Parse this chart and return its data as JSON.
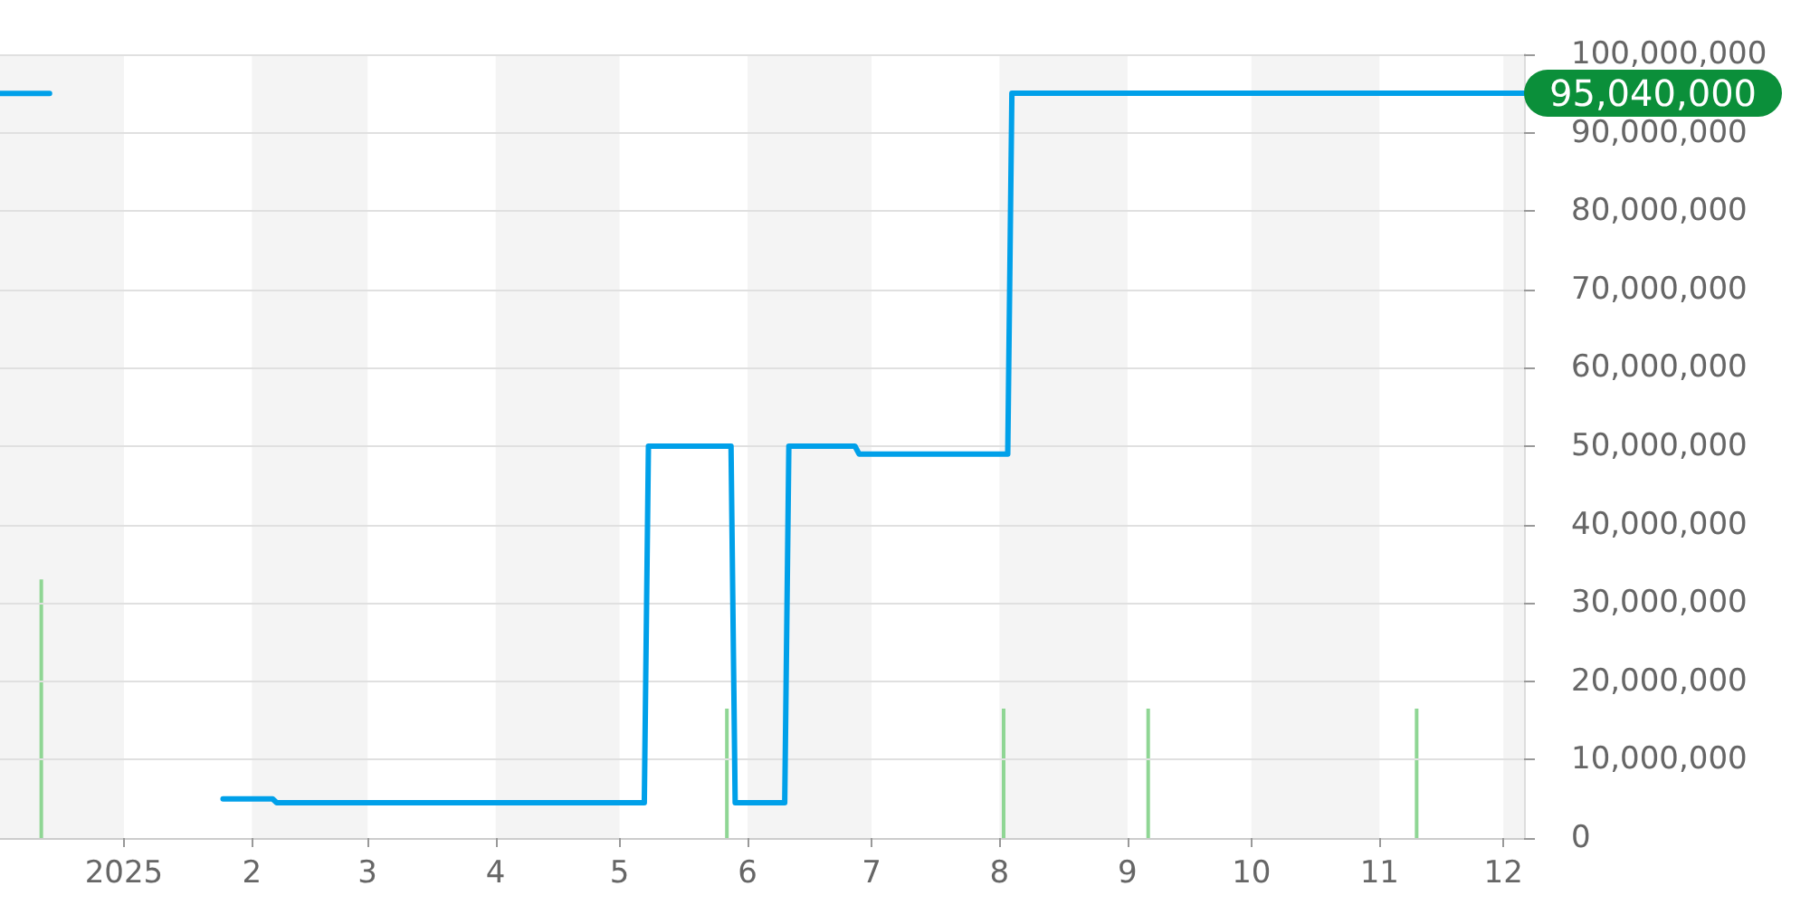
{
  "chart_data": {
    "type": "line",
    "xlim": [
      "2024-12-02",
      "2025-12-06"
    ],
    "xticks": [
      {
        "value": "2025-01-01",
        "label": "2025"
      },
      {
        "value": "2025-02-01",
        "label": "2"
      },
      {
        "value": "2025-03-01",
        "label": "3"
      },
      {
        "value": "2025-04-01",
        "label": "4"
      },
      {
        "value": "2025-05-01",
        "label": "5"
      },
      {
        "value": "2025-06-01",
        "label": "6"
      },
      {
        "value": "2025-07-01",
        "label": "7"
      },
      {
        "value": "2025-08-01",
        "label": "8"
      },
      {
        "value": "2025-09-01",
        "label": "9"
      },
      {
        "value": "2025-10-01",
        "label": "10"
      },
      {
        "value": "2025-11-01",
        "label": "11"
      },
      {
        "value": "2025-12-01",
        "label": "12"
      }
    ],
    "ylim": [
      0,
      100000000
    ],
    "yticks": [
      {
        "value": 0,
        "label": "0"
      },
      {
        "value": 10000000,
        "label": "10,000,000"
      },
      {
        "value": 20000000,
        "label": "20,000,000"
      },
      {
        "value": 30000000,
        "label": "30,000,000"
      },
      {
        "value": 40000000,
        "label": "40,000,000"
      },
      {
        "value": 50000000,
        "label": "50,000,000"
      },
      {
        "value": 60000000,
        "label": "60,000,000"
      },
      {
        "value": 70000000,
        "label": "70,000,000"
      },
      {
        "value": 80000000,
        "label": "80,000,000"
      },
      {
        "value": 90000000,
        "label": "90,000,000"
      },
      {
        "value": 100000000,
        "label": "100,000,000"
      }
    ],
    "grid": "y",
    "bands": [
      {
        "axis": "x",
        "from": "2024-12-02",
        "to": "2025-01-01",
        "color": "#f4f4f4"
      },
      {
        "axis": "x",
        "from": "2025-02-01",
        "to": "2025-03-01",
        "color": "#f4f4f4"
      },
      {
        "axis": "x",
        "from": "2025-04-01",
        "to": "2025-05-01",
        "color": "#f4f4f4"
      },
      {
        "axis": "x",
        "from": "2025-06-01",
        "to": "2025-07-01",
        "color": "#f4f4f4"
      },
      {
        "axis": "x",
        "from": "2025-08-01",
        "to": "2025-09-01",
        "color": "#f4f4f4"
      },
      {
        "axis": "x",
        "from": "2025-10-01",
        "to": "2025-11-01",
        "color": "#f4f4f4"
      },
      {
        "axis": "x",
        "from": "2025-12-01",
        "to": "2025-12-06",
        "color": "#f4f4f4"
      }
    ],
    "series": [
      {
        "type": "bar",
        "color": "#8fd694",
        "x": [
          "2024-12-12",
          "2025-05-27",
          "2025-08-02",
          "2025-09-06",
          "2025-11-10"
        ],
        "values": [
          33000000,
          16500000,
          16500000,
          16500000,
          16500000
        ]
      },
      {
        "color": "#00a0e9",
        "x": [
          "2024-12-02",
          "2024-12-14",
          "2024-12-20",
          "2025-01-25",
          "2025-02-06",
          "2025-02-07",
          "2025-05-07",
          "2025-05-08",
          "2025-05-28",
          "2025-05-29",
          "2025-06-10",
          "2025-06-11",
          "2025-06-27",
          "2025-06-28",
          "2025-08-03",
          "2025-08-04",
          "2025-12-06"
        ],
        "values": [
          95000000,
          95000000,
          null,
          5000000,
          5000000,
          4500000,
          4500000,
          50000000,
          50000000,
          4500000,
          4500000,
          50000000,
          50000000,
          49000000,
          49000000,
          95040000,
          95040000
        ],
        "value_labels": [
          null,
          null,
          null,
          null,
          null,
          null,
          null,
          null,
          null,
          null,
          null,
          null,
          null,
          null,
          null,
          null,
          "95,040,000"
        ]
      }
    ]
  }
}
